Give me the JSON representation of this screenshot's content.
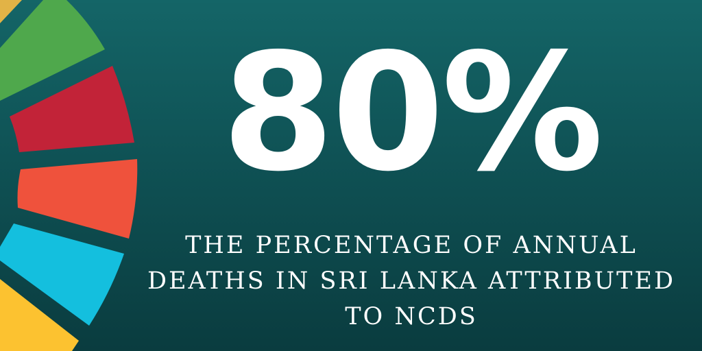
{
  "headline": {
    "value": "80%"
  },
  "caption": {
    "lines": [
      "THE PERCENTAGE OF ANNUAL",
      "DEATHS IN SRI LANKA ATTRIBUTED",
      "TO NCDS"
    ]
  },
  "colors": {
    "background_top": "#146567",
    "background_bottom": "#0a3c3f",
    "wheel_segments": [
      "#e2b346",
      "#4fa84c",
      "#c22338",
      "#ef523c",
      "#14bfde",
      "#fcc230"
    ]
  }
}
